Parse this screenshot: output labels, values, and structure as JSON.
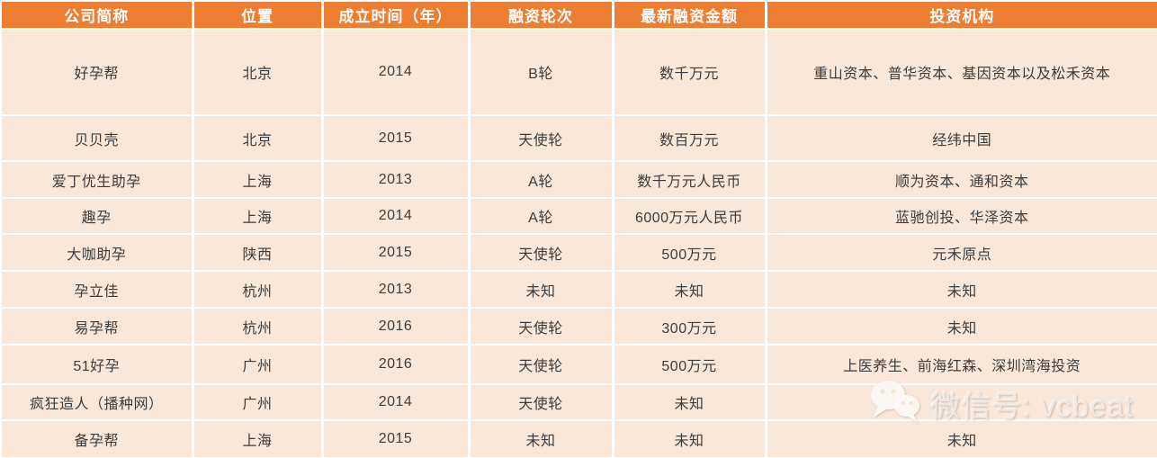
{
  "chart_data": {
    "type": "table",
    "columns": [
      "公司简称",
      "位置",
      "成立时间（年）",
      "融资轮次",
      "最新融资金额",
      "投资机构"
    ],
    "rows": [
      [
        "好孕帮",
        "北京",
        "2014",
        "B轮",
        "数千万元",
        "重山资本、普华资本、基因资本以及松禾资本"
      ],
      [
        "贝贝壳",
        "北京",
        "2015",
        "天使轮",
        "数百万元",
        "经纬中国"
      ],
      [
        "爱丁优生助孕",
        "上海",
        "2013",
        "A轮",
        "数千万元人民币",
        "顺为资本、通和资本"
      ],
      [
        "趣孕",
        "上海",
        "2014",
        "A轮",
        "6000万元人民币",
        "蓝驰创投、华泽资本"
      ],
      [
        "大咖助孕",
        "陕西",
        "2015",
        "天使轮",
        "500万元",
        "元禾原点"
      ],
      [
        "孕立佳",
        "杭州",
        "2013",
        "未知",
        "未知",
        "未知"
      ],
      [
        "易孕帮",
        "杭州",
        "2016",
        "天使轮",
        "300万元",
        "未知"
      ],
      [
        "51好孕",
        "广州",
        "2016",
        "天使轮",
        "500万元",
        "上医养生、前海红森、深圳湾海投资"
      ],
      [
        "疯狂造人（播种网）",
        "广州",
        "2014",
        "天使轮",
        "未知",
        ""
      ],
      [
        "备孕帮",
        "上海",
        "2015",
        "未知",
        "未知",
        "未知"
      ]
    ]
  },
  "watermark": {
    "text": "微信号: vcbeat"
  },
  "colors": {
    "header_bg": "#ED7D31",
    "header_text": "#FFFFFF",
    "row_bg": "#FBE7D7",
    "divider": "#FFFFFF",
    "body_text": "#3B3B3B",
    "watermark_text": "#EFE9E2"
  }
}
